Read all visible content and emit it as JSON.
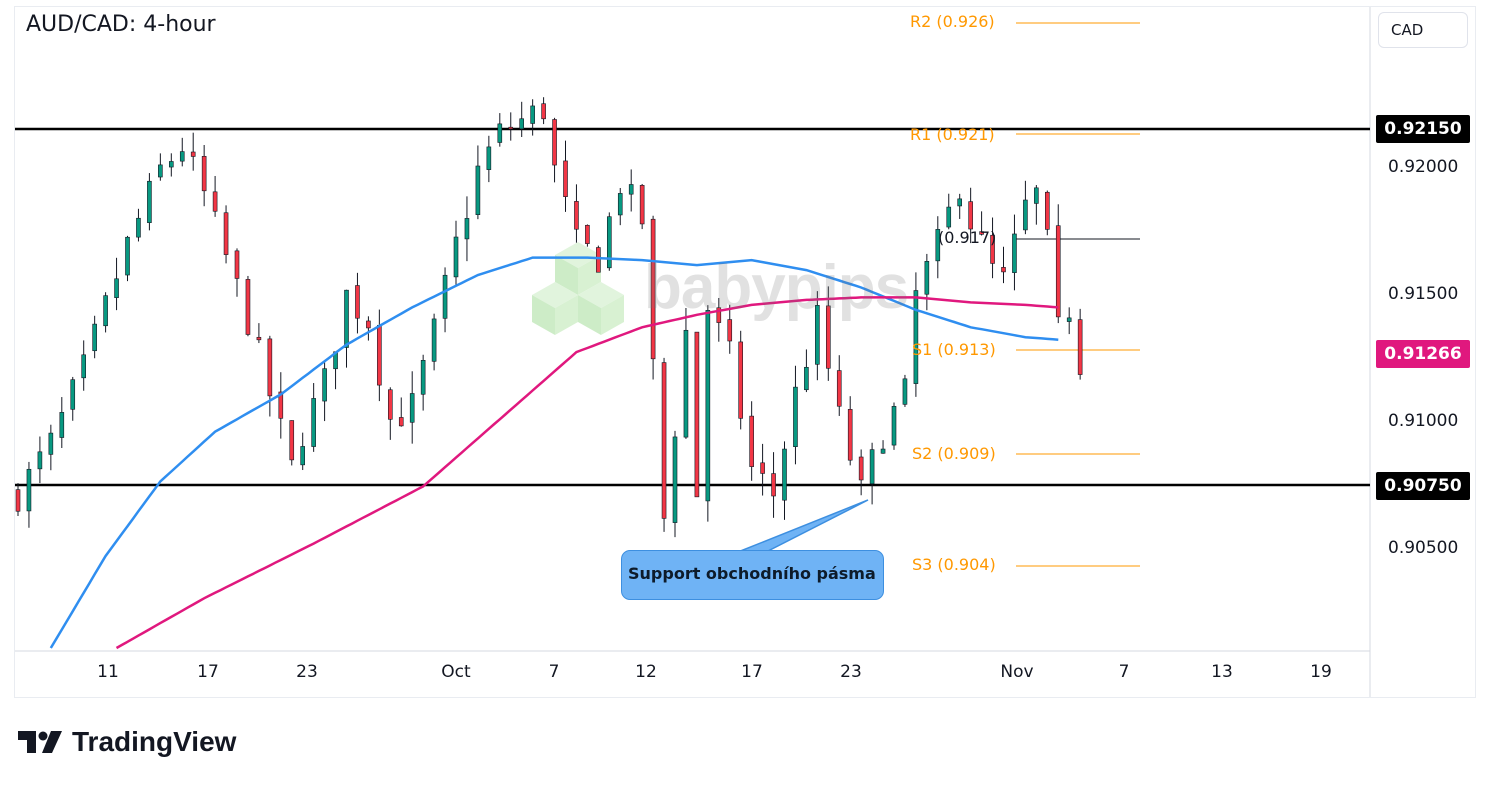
{
  "header": {
    "title": "AUD/CAD: 4-hour",
    "currency": "CAD"
  },
  "colors": {
    "bull": "#089981",
    "bear": "#f23645",
    "candle": "#131722",
    "sma_fast": "#2f8ef0",
    "sma_slow": "#e0187e",
    "pivot": "#ff9800",
    "range_line": "#000000",
    "tag_dark": "#000000",
    "tag_current": "#e0187e",
    "callout_fill": "#6fb3f5",
    "watermark": "#b7e4b0"
  },
  "price_axis": {
    "ticks": [
      "0.92000",
      "0.91500",
      "0.91000",
      "0.90500"
    ]
  },
  "price_tags": [
    {
      "label": "0.92150",
      "kind": "range_top"
    },
    {
      "label": "0.91266",
      "kind": "current"
    },
    {
      "label": "0.90750",
      "kind": "range_bottom"
    }
  ],
  "time_axis": {
    "ticks": [
      "11",
      "17",
      "23",
      "Oct",
      "7",
      "12",
      "17",
      "23",
      "Nov",
      "7",
      "13",
      "19"
    ]
  },
  "pivots": {
    "r2": "R2 (0.926)",
    "r1": "R1 (0.921)",
    "pp": "(0.917)",
    "s1": "S1 (0.913)",
    "s2": "S2 (0.909)",
    "s3": "S3 (0.904)"
  },
  "annotation": {
    "text": "Support obchodního pásma"
  },
  "watermark": {
    "text": "babypips"
  },
  "branding": {
    "text": "TradingView"
  },
  "chart_data": {
    "type": "candlestick",
    "symbol": "AUD/CAD",
    "timeframe": "4-hour",
    "ylim": [
      0.9013,
      0.927
    ],
    "range_lines": [
      0.9215,
      0.9075
    ],
    "current_price": 0.91266,
    "pivot_levels": {
      "R2": 0.926,
      "R1": 0.921,
      "PP": 0.917,
      "S1": 0.913,
      "S2": 0.909,
      "S3": 0.904
    },
    "close_path": [
      [
        0,
        0.9075
      ],
      [
        3,
        0.9095
      ],
      [
        6,
        0.9125
      ],
      [
        8,
        0.915
      ],
      [
        10,
        0.9175
      ],
      [
        13,
        0.9205
      ],
      [
        15,
        0.9215
      ],
      [
        17,
        0.9195
      ],
      [
        19,
        0.917
      ],
      [
        21,
        0.9145
      ],
      [
        23,
        0.9115
      ],
      [
        25,
        0.9085
      ],
      [
        26,
        0.91
      ],
      [
        28,
        0.912
      ],
      [
        30,
        0.9155
      ],
      [
        32,
        0.9145
      ],
      [
        34,
        0.9105
      ],
      [
        36,
        0.911
      ],
      [
        38,
        0.914
      ],
      [
        40,
        0.9175
      ],
      [
        42,
        0.9205
      ],
      [
        44,
        0.922
      ],
      [
        46,
        0.9225
      ],
      [
        48,
        0.923
      ],
      [
        49,
        0.9205
      ],
      [
        51,
        0.9175
      ],
      [
        53,
        0.917
      ],
      [
        55,
        0.92
      ],
      [
        57,
        0.9185
      ],
      [
        59,
        0.9065
      ],
      [
        61,
        0.914
      ],
      [
        62,
        0.9075
      ],
      [
        63,
        0.915
      ],
      [
        65,
        0.913
      ],
      [
        67,
        0.9085
      ],
      [
        69,
        0.9075
      ],
      [
        71,
        0.9115
      ],
      [
        73,
        0.9145
      ],
      [
        75,
        0.9105
      ],
      [
        77,
        0.9075
      ],
      [
        79,
        0.91
      ],
      [
        81,
        0.9115
      ],
      [
        82,
        0.9155
      ],
      [
        84,
        0.9175
      ],
      [
        86,
        0.92
      ],
      [
        87,
        0.9185
      ],
      [
        89,
        0.9165
      ],
      [
        90,
        0.916
      ],
      [
        92,
        0.919
      ],
      [
        93,
        0.9195
      ],
      [
        94,
        0.9175
      ],
      [
        95,
        0.914
      ],
      [
        96,
        0.915
      ],
      [
        97,
        0.9128
      ]
    ],
    "sma_fast": [
      [
        3,
        0.9013
      ],
      [
        8,
        0.905
      ],
      [
        13,
        0.908
      ],
      [
        18,
        0.91
      ],
      [
        24,
        0.9115
      ],
      [
        30,
        0.9135
      ],
      [
        36,
        0.915
      ],
      [
        42,
        0.9163
      ],
      [
        47,
        0.917
      ],
      [
        52,
        0.917
      ],
      [
        57,
        0.9169
      ],
      [
        62,
        0.9167
      ],
      [
        67,
        0.9169
      ],
      [
        72,
        0.9165
      ],
      [
        77,
        0.9158
      ],
      [
        82,
        0.9149
      ],
      [
        87,
        0.9142
      ],
      [
        92,
        0.9138
      ],
      [
        95,
        0.9137
      ]
    ],
    "sma_slow": [
      [
        9,
        0.9013
      ],
      [
        17,
        0.9033
      ],
      [
        27,
        0.9055
      ],
      [
        37,
        0.9078
      ],
      [
        44,
        0.9105
      ],
      [
        51,
        0.9132
      ],
      [
        57,
        0.9142
      ],
      [
        62,
        0.9147
      ],
      [
        67,
        0.9151
      ],
      [
        72,
        0.9153
      ],
      [
        77,
        0.9154
      ],
      [
        82,
        0.9154
      ],
      [
        87,
        0.9152
      ],
      [
        92,
        0.9151
      ],
      [
        95,
        0.915
      ]
    ]
  }
}
